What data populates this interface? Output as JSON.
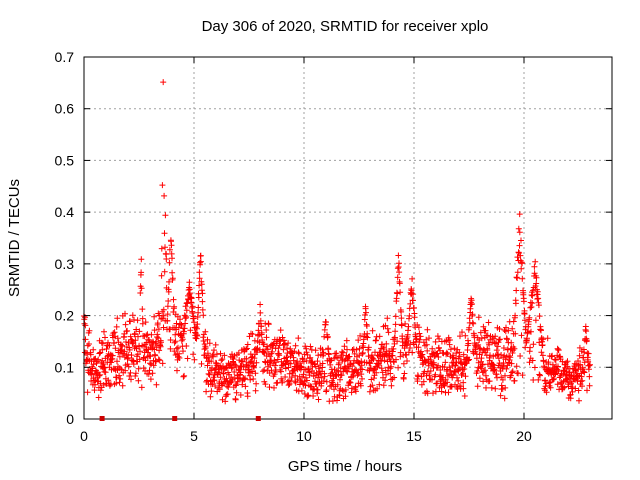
{
  "chart_data": {
    "type": "scatter",
    "title": "Day 306 of 2020, SRMTID for receiver xplo",
    "xlabel": "GPS time / hours",
    "ylabel": "SRMTID / TECUs",
    "xlim": [
      0,
      24
    ],
    "ylim": [
      0,
      0.7
    ],
    "x_ticks": [
      0,
      5,
      10,
      15,
      20
    ],
    "y_ticks": [
      0,
      0.1,
      0.2,
      0.3,
      0.4,
      0.5,
      0.6,
      0.7
    ],
    "x_tick_labels": [
      "0",
      "5",
      "10",
      "15",
      "20"
    ],
    "y_tick_labels": [
      "0",
      "0.1",
      "0.2",
      "0.3",
      "0.4",
      "0.5",
      "0.6",
      "0.7"
    ],
    "grid": true,
    "marker": "plus",
    "series_color": "#ff0000",
    "gap_marker_color": "#cc0000",
    "gap_markers_x": [
      0.8,
      4.1,
      7.9
    ],
    "x_range": [
      0,
      23.0
    ],
    "envelope": [
      {
        "x": 0.0,
        "base": 0.13,
        "spread": 0.06
      },
      {
        "x": 0.4,
        "base": 0.1,
        "spread": 0.05
      },
      {
        "x": 1.0,
        "base": 0.12,
        "spread": 0.06
      },
      {
        "x": 2.0,
        "base": 0.14,
        "spread": 0.06
      },
      {
        "x": 3.0,
        "base": 0.13,
        "spread": 0.06
      },
      {
        "x": 4.0,
        "base": 0.16,
        "spread": 0.06
      },
      {
        "x": 5.0,
        "base": 0.15,
        "spread": 0.06
      },
      {
        "x": 6.0,
        "base": 0.09,
        "spread": 0.05
      },
      {
        "x": 7.0,
        "base": 0.09,
        "spread": 0.05
      },
      {
        "x": 8.0,
        "base": 0.12,
        "spread": 0.06
      },
      {
        "x": 9.0,
        "base": 0.11,
        "spread": 0.05
      },
      {
        "x": 10.0,
        "base": 0.09,
        "spread": 0.05
      },
      {
        "x": 11.0,
        "base": 0.08,
        "spread": 0.05
      },
      {
        "x": 12.0,
        "base": 0.1,
        "spread": 0.05
      },
      {
        "x": 13.0,
        "base": 0.11,
        "spread": 0.06
      },
      {
        "x": 14.0,
        "base": 0.13,
        "spread": 0.06
      },
      {
        "x": 15.0,
        "base": 0.12,
        "spread": 0.06
      },
      {
        "x": 16.0,
        "base": 0.1,
        "spread": 0.05
      },
      {
        "x": 17.0,
        "base": 0.1,
        "spread": 0.05
      },
      {
        "x": 18.0,
        "base": 0.13,
        "spread": 0.06
      },
      {
        "x": 19.0,
        "base": 0.11,
        "spread": 0.06
      },
      {
        "x": 20.0,
        "base": 0.15,
        "spread": 0.06
      },
      {
        "x": 21.0,
        "base": 0.1,
        "spread": 0.05
      },
      {
        "x": 22.0,
        "base": 0.08,
        "spread": 0.04
      },
      {
        "x": 23.0,
        "base": 0.09,
        "spread": 0.05
      }
    ],
    "spikes": [
      {
        "center": 0.0,
        "width": 0.1,
        "peak": 0.22
      },
      {
        "center": 2.6,
        "width": 0.1,
        "peak": 0.33
      },
      {
        "center": 3.6,
        "width": 0.1,
        "peak": 0.67
      },
      {
        "center": 3.7,
        "width": 0.1,
        "peak": 0.42
      },
      {
        "center": 3.95,
        "width": 0.2,
        "peak": 0.38
      },
      {
        "center": 4.8,
        "width": 0.3,
        "peak": 0.27
      },
      {
        "center": 5.3,
        "width": 0.2,
        "peak": 0.34
      },
      {
        "center": 8.0,
        "width": 0.15,
        "peak": 0.23
      },
      {
        "center": 11.0,
        "width": 0.2,
        "peak": 0.22
      },
      {
        "center": 12.8,
        "width": 0.15,
        "peak": 0.23
      },
      {
        "center": 14.3,
        "width": 0.2,
        "peak": 0.34
      },
      {
        "center": 14.9,
        "width": 0.25,
        "peak": 0.28
      },
      {
        "center": 17.6,
        "width": 0.2,
        "peak": 0.25
      },
      {
        "center": 19.8,
        "width": 0.3,
        "peak": 0.4
      },
      {
        "center": 20.5,
        "width": 0.4,
        "peak": 0.31
      },
      {
        "center": 22.8,
        "width": 0.15,
        "peak": 0.19
      }
    ],
    "n_points": 1900
  }
}
